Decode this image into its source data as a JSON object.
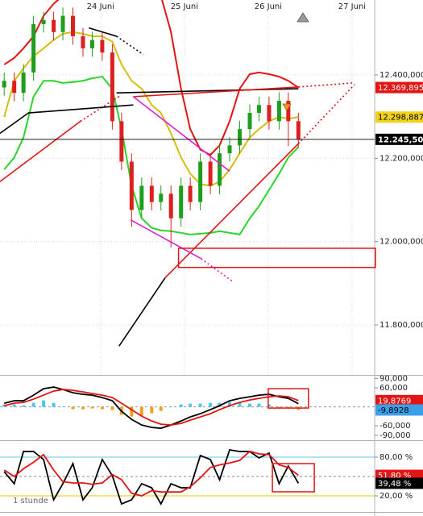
{
  "chart_data": [
    {
      "type": "candlestick",
      "x": [
        22.85,
        22.97,
        23.08,
        23.2,
        23.32,
        23.44,
        23.55,
        23.67,
        23.79,
        23.9,
        24.02,
        24.14,
        24.25,
        24.37,
        24.49,
        24.61,
        24.72,
        24.84,
        24.96,
        25.07,
        25.19,
        25.31,
        25.42,
        25.54,
        25.66,
        25.78,
        25.89,
        26.01,
        26.13,
        26.24,
        26.36
      ],
      "xlim": [
        22.8,
        27.27
      ],
      "xticks": [
        {
          "value": 24,
          "label": "24 Juni"
        },
        {
          "value": 25,
          "label": "25 Juni"
        },
        {
          "value": 26,
          "label": "26 Juni"
        },
        {
          "value": 27,
          "label": "27 Juni"
        }
      ],
      "ylim": [
        11680,
        12580
      ],
      "yticks": [
        {
          "value": 12400,
          "label": "12.400,000"
        },
        {
          "value": 12200,
          "label": "12.200,000"
        },
        {
          "value": 12000,
          "label": "12.000,000"
        },
        {
          "value": 11800,
          "label": "11.800,000"
        }
      ],
      "grid": true,
      "up_color": "#1e9e1e",
      "down_color": "#dd1f1f",
      "ohlc": {
        "open": [
          12370,
          12386,
          12357,
          12406,
          12522,
          12532,
          12503,
          12542,
          12493,
          12464,
          12484,
          12454,
          12289,
          12192,
          12076,
          12134,
          12095,
          12115,
          12056,
          12134,
          12095,
          12192,
          12134,
          12212,
          12231,
          12270,
          12309,
          12328,
          12289,
          12338,
          12289
        ],
        "high": [
          12406,
          12406,
          12426,
          12542,
          12552,
          12552,
          12562,
          12562,
          12513,
          12504,
          12504,
          12474,
          12309,
          12212,
          12154,
          12154,
          12135,
          12135,
          12154,
          12154,
          12212,
          12212,
          12232,
          12251,
          12290,
          12329,
          12348,
          12348,
          12358,
          12358,
          12309
        ],
        "low": [
          12350,
          12337,
          12337,
          12386,
          12502,
          12483,
          12483,
          12473,
          12444,
          12444,
          12434,
          12269,
          12172,
          12036,
          12056,
          12075,
          12075,
          11986,
          12036,
          12075,
          12075,
          12114,
          12114,
          12192,
          12211,
          12250,
          12289,
          12269,
          12269,
          12229,
          12225
        ],
        "close": [
          12386,
          12357,
          12406,
          12522,
          12532,
          12503,
          12542,
          12493,
          12464,
          12484,
          12454,
          12289,
          12192,
          12076,
          12134,
          12095,
          12115,
          12056,
          12134,
          12095,
          12192,
          12134,
          12212,
          12231,
          12270,
          12309,
          12328,
          12289,
          12338,
          12289,
          12245.5
        ]
      },
      "series": [
        {
          "color": "#e31414",
          "values": [
            12425,
            12441,
            12464,
            12493,
            12542,
            12571,
            12590,
            12600,
            12600,
            12600,
            12600,
            12600,
            12600,
            12600,
            12600,
            12600,
            12590,
            12503,
            12367,
            12270,
            12221,
            12208,
            12231,
            12289,
            12367,
            12402,
            12406,
            12402,
            12396,
            12386,
            12369.895
          ]
        },
        {
          "color": "#d8bc10",
          "values": [
            12299,
            12386,
            12416,
            12445,
            12464,
            12484,
            12499,
            12503,
            12499,
            12493,
            12493,
            12480,
            12425,
            12386,
            12367,
            12328,
            12309,
            12260,
            12202,
            12163,
            12138,
            12134,
            12144,
            12173,
            12212,
            12250,
            12270,
            12289,
            12299,
            12295,
            12298.887
          ]
        },
        {
          "color": "#2ad42a",
          "values": [
            12173,
            12202,
            12250,
            12348,
            12386,
            12386,
            12381,
            12383,
            12386,
            12392,
            12396,
            12367,
            12270,
            12134,
            12056,
            12033,
            12027,
            12025,
            12021,
            12017,
            12019,
            12021,
            12025,
            12021,
            12017,
            12056,
            12085,
            12124,
            12163,
            12202,
            12227
          ]
        }
      ],
      "trendlines": [
        {
          "color": "#000000",
          "dashed": false,
          "x": [
            24.22,
            24.77
          ],
          "y": [
            11749,
            11913
          ]
        },
        {
          "color": "#e31414",
          "dashed": false,
          "x": [
            24.77,
            26.36
          ],
          "y": [
            11913,
            12235
          ]
        },
        {
          "color": "#e31414",
          "dashed": true,
          "x": [
            26.36,
            27.03
          ],
          "y": [
            12235,
            12377
          ]
        },
        {
          "color": "#e31414",
          "dashed": false,
          "x": [
            22.8,
            23.76
          ],
          "y": [
            12144,
            12289
          ]
        },
        {
          "color": "#e31414",
          "dashed": true,
          "x": [
            23.76,
            24.24
          ],
          "y": [
            12289,
            12351
          ]
        },
        {
          "color": "#000000",
          "dashed": false,
          "x": [
            22.8,
            23.14,
            24.39
          ],
          "y": [
            12260,
            12309,
            12328
          ]
        },
        {
          "color": "#000000",
          "dashed": false,
          "x": [
            24.19,
            26.36
          ],
          "y": [
            12357,
            12367
          ]
        },
        {
          "color": "#e31414",
          "dashed": false,
          "x": [
            24.39,
            26.36
          ],
          "y": [
            12348,
            12371
          ]
        },
        {
          "color": "#e31414",
          "dashed": true,
          "x": [
            26.36,
            27.01
          ],
          "y": [
            12371,
            12381
          ]
        },
        {
          "color": "#000000",
          "dashed": false,
          "x": [
            23.86,
            24.19
          ],
          "y": [
            12513,
            12493
          ]
        },
        {
          "color": "#000000",
          "dashed": true,
          "x": [
            24.19,
            24.51
          ],
          "y": [
            12493,
            12449
          ]
        },
        {
          "color": "#e020d0",
          "dashed": false,
          "x": [
            24.39,
            25.54
          ],
          "y": [
            12348,
            12169
          ]
        },
        {
          "color": "#e020d0",
          "dashed": false,
          "x": [
            24.36,
            25.2
          ],
          "y": [
            12052,
            11959
          ]
        },
        {
          "color": "#e020d0",
          "dashed": true,
          "x": [
            25.2,
            25.57
          ],
          "y": [
            11959,
            11905
          ]
        }
      ],
      "boxes": [
        {
          "color": "#e31414",
          "x": [
            24.93,
            27.28
          ],
          "y": [
            11938,
            11984
          ]
        }
      ],
      "tags": [
        {
          "value": 12369.895,
          "label": "12.369,895",
          "color": "#e31414",
          "text_color": "#ffffff",
          "line": false
        },
        {
          "value": 12298.887,
          "label": "12.298,887",
          "color": "#f2d21a",
          "text_color": "#000000",
          "line": false
        },
        {
          "value": 12245.5,
          "label": "12.245,500",
          "color": "#000000",
          "text_color": "#ffffff",
          "line": true
        }
      ]
    },
    {
      "type": "line",
      "ylim": [
        -103,
        101
      ],
      "yticks": [
        {
          "value": 90,
          "label": "90,000"
        },
        {
          "value": 60,
          "label": "60,000"
        },
        {
          "value": -60,
          "label": "-60,000"
        },
        {
          "value": -90,
          "label": "-90,000"
        }
      ],
      "levels": [
        {
          "value": 0,
          "color": "#999999",
          "dashed": true
        }
      ],
      "series": [
        {
          "style": "bars",
          "color": "#4cc8e8",
          "negative_color": "#f0a020",
          "values": [
            7.7,
            7.7,
            5.2,
            12.7,
            20.4,
            12.8,
            0,
            -7.6,
            -7.6,
            -5.1,
            -7.6,
            -10.2,
            -25.5,
            -30.7,
            -28,
            -20.4,
            -12.8,
            0,
            7.6,
            10.2,
            10.2,
            12.8,
            12.7,
            15.4,
            12.8,
            10.2,
            10.2,
            7.7,
            -2.6,
            -5.1,
            -9.8928
          ]
        },
        {
          "style": "line",
          "color": "#000000",
          "values": [
            11.5,
            19.2,
            19.2,
            37,
            57.4,
            62.6,
            54.9,
            44.7,
            39.6,
            37,
            29.4,
            19.2,
            -14,
            -39.6,
            -57.4,
            -65.1,
            -67.7,
            -57.4,
            -44.7,
            -31.9,
            -21.7,
            -8.9,
            3.8,
            19.2,
            26.8,
            31.9,
            37,
            39.6,
            31.9,
            26.8,
            9.98
          ]
        },
        {
          "style": "line",
          "color": "#e31414",
          "values": [
            3.8,
            11.5,
            14,
            24.3,
            37,
            49.8,
            54.9,
            52.3,
            47.2,
            42.1,
            37,
            29.4,
            11.5,
            -8.9,
            -29.4,
            -44.7,
            -54.9,
            -57.4,
            -52.3,
            -42.1,
            -31.9,
            -21.7,
            -8.9,
            3.8,
            14,
            21.7,
            26.8,
            31.9,
            34.5,
            31.9,
            19.8769
          ]
        }
      ],
      "boxes": [
        {
          "color": "#e31414",
          "x": [
            26.0,
            26.48
          ],
          "y": [
            -3.8,
            57.4
          ]
        }
      ],
      "tags": [
        {
          "value": 19.8769,
          "label": "19,8769",
          "color": "#e31414",
          "text_color": "#ffffff",
          "line": false
        },
        {
          "value": -9.8928,
          "label": "-9,8928",
          "color": "#3a9ee8",
          "text_color": "#000000",
          "line": false
        }
      ]
    },
    {
      "type": "line",
      "ylim": [
        -5,
        103.75
      ],
      "yticks": [
        {
          "value": 80,
          "label": "80,00 %"
        },
        {
          "value": 20,
          "label": "20,00 %"
        }
      ],
      "levels": [
        {
          "value": 80,
          "color": "#5bc8e8",
          "dashed": false
        },
        {
          "value": 50,
          "color": "#888888",
          "dashed": true
        },
        {
          "value": 20,
          "color": "#e8c800",
          "dashed": false
        }
      ],
      "series": [
        {
          "style": "line",
          "color": "#000000",
          "values": [
            57.5,
            38.8,
            88.8,
            88.8,
            76.3,
            13.8,
            38.8,
            70,
            13.8,
            32.5,
            76.3,
            51.3,
            7.5,
            13.8,
            38.8,
            32.5,
            7.5,
            38.8,
            32.5,
            32.5,
            82.5,
            76.3,
            45,
            91.3,
            88.8,
            88.8,
            78.8,
            86.3,
            38.8,
            66.3,
            39.48
          ]
        },
        {
          "style": "line",
          "color": "#e31414",
          "values": [
            60,
            50,
            62,
            72,
            84,
            60,
            42,
            40,
            40,
            38,
            40,
            53,
            45,
            24,
            20,
            28,
            26,
            26,
            26,
            34,
            48,
            64,
            68,
            71,
            75,
            89,
            85,
            84,
            68,
            64,
            51.8
          ]
        }
      ],
      "boxes": [
        {
          "color": "#e31414",
          "x": [
            26.05,
            26.55
          ],
          "y": [
            26.3,
            70
          ]
        }
      ],
      "tags": [
        {
          "value": 51.8,
          "label": "51,80 %",
          "color": "#e31414",
          "text_color": "#ffffff",
          "line": false
        },
        {
          "value": 39.48,
          "label": "39,48 %",
          "color": "#000000",
          "text_color": "#ffffff",
          "line": false
        }
      ],
      "annotation": "1 stunde"
    }
  ]
}
